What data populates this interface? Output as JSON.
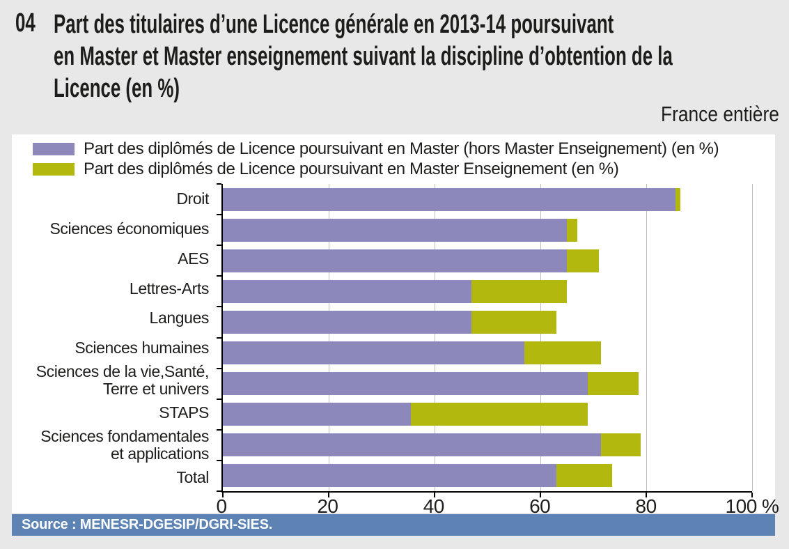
{
  "figure": {
    "number": "04",
    "title_lines": [
      "Part des titulaires d’une Licence générale en 2013-14 poursuivant",
      "en Master et Master enseignement suivant la discipline d’obtention de la",
      "Licence (en %)"
    ],
    "region": "France entière"
  },
  "legend": [
    {
      "label": "Part des diplômés de Licence poursuivant en Master (hors Master Enseignement) (en %)",
      "color": "#8c88bb"
    },
    {
      "label": "Part des diplômés de Licence poursuivant en Master Enseignement (en %)",
      "color": "#b2b80e"
    }
  ],
  "chart_data": {
    "type": "bar",
    "orientation": "horizontal",
    "stacked": true,
    "title": "Part des titulaires d’une Licence générale en 2013-14 poursuivant en Master et Master enseignement suivant la discipline d’obtention de la Licence (en %)",
    "categories": [
      "Droit",
      "Sciences économiques",
      "AES",
      "Lettres-Arts",
      "Langues",
      "Sciences humaines",
      "Sciences de la vie,Santé,\nTerre et univers",
      "STAPS",
      "Sciences fondamentales\net applications",
      "Total"
    ],
    "series": [
      {
        "name": "Part des diplômés de Licence poursuivant en Master (hors Master Enseignement) (en %)",
        "color": "#8c88bb",
        "values": [
          85.5,
          65,
          65,
          47,
          47,
          57,
          69,
          35.5,
          71.5,
          63
        ]
      },
      {
        "name": "Part des diplômés de Licence poursuivant en Master Enseignement (en %)",
        "color": "#b2b80e",
        "values": [
          1,
          2,
          6,
          18,
          16,
          14.5,
          9.5,
          33.5,
          7.5,
          10.5
        ]
      }
    ],
    "xlabel": "",
    "ylabel": "",
    "xlim": [
      0,
      100
    ],
    "x_ticks": [
      0,
      20,
      40,
      60,
      80,
      100
    ],
    "x_tick_labels": [
      "0",
      "20",
      "40",
      "60",
      "80",
      "100 %"
    ],
    "grid": "vertical-gridlines",
    "legend_position": "top-left"
  },
  "footer": {
    "source": "Source : MENESR-DGESIP/DGRI-SIES."
  },
  "colors": {
    "background": "#e8e8e8",
    "plot_background": "#ffffff",
    "master": "#8c88bb",
    "enseignement": "#b2b80e",
    "source_band": "#5d83b5",
    "gridline": "#bdbdbd",
    "axis": "#000000",
    "text": "#1d1d1b"
  }
}
